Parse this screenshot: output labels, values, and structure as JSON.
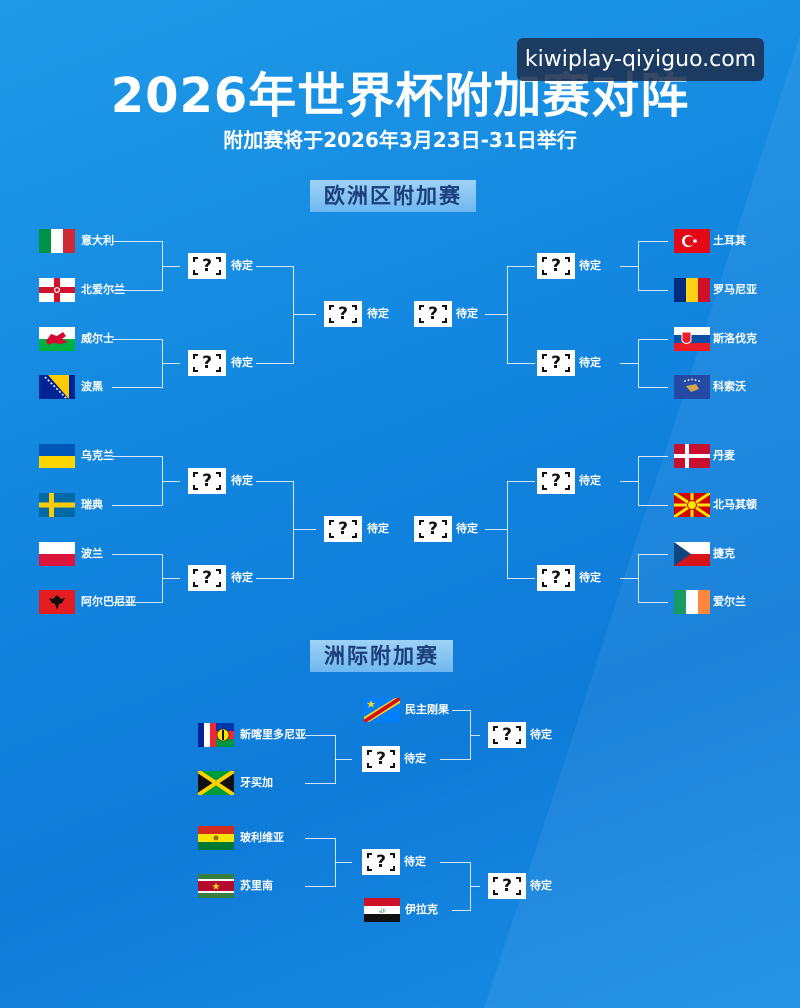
{
  "watermark": "kiwiplay-qiyiguo.com",
  "header": {
    "title": "2026年世界杯附加赛对阵",
    "subtitle": "附加赛将于2026年3月23日-31日举行"
  },
  "sections": {
    "europe": "欧洲区附加赛",
    "intercontinental": "洲际附加赛"
  },
  "placeholder": {
    "symbol": "?",
    "label": "待定"
  },
  "europe": {
    "left": [
      {
        "teams": [
          {
            "name": "意大利",
            "flag": "it"
          },
          {
            "name": "北爱尔兰",
            "flag": "nir"
          },
          {
            "name": "威尔士",
            "flag": "wal"
          },
          {
            "name": "波黑",
            "flag": "ba"
          }
        ]
      },
      {
        "teams": [
          {
            "name": "乌克兰",
            "flag": "ua"
          },
          {
            "name": "瑞典",
            "flag": "se"
          },
          {
            "name": "波兰",
            "flag": "pl"
          },
          {
            "name": "阿尔巴尼亚",
            "flag": "al"
          }
        ]
      }
    ],
    "right": [
      {
        "teams": [
          {
            "name": "土耳其",
            "flag": "tr"
          },
          {
            "name": "罗马尼亚",
            "flag": "ro"
          },
          {
            "name": "斯洛伐克",
            "flag": "sk"
          },
          {
            "name": "科索沃",
            "flag": "xk"
          }
        ]
      },
      {
        "teams": [
          {
            "name": "丹麦",
            "flag": "dk"
          },
          {
            "name": "北马其顿",
            "flag": "mk"
          },
          {
            "name": "捷克",
            "flag": "cz"
          },
          {
            "name": "爱尔兰",
            "flag": "ie"
          }
        ]
      }
    ]
  },
  "intercontinental": {
    "paths": [
      {
        "teams": [
          {
            "name": "新喀里多尼亚",
            "flag": "nc"
          },
          {
            "name": "牙买加",
            "flag": "jm"
          }
        ],
        "seeded": {
          "name": "民主刚果",
          "flag": "cd"
        }
      },
      {
        "teams": [
          {
            "name": "玻利维亚",
            "flag": "bo"
          },
          {
            "name": "苏里南",
            "flag": "sr"
          }
        ],
        "seeded": {
          "name": "伊拉克",
          "flag": "iq"
        }
      }
    ]
  },
  "colors": {
    "background": "#1184de",
    "section_bg": "#8cc8f4",
    "section_text": "#1b3f7a"
  }
}
